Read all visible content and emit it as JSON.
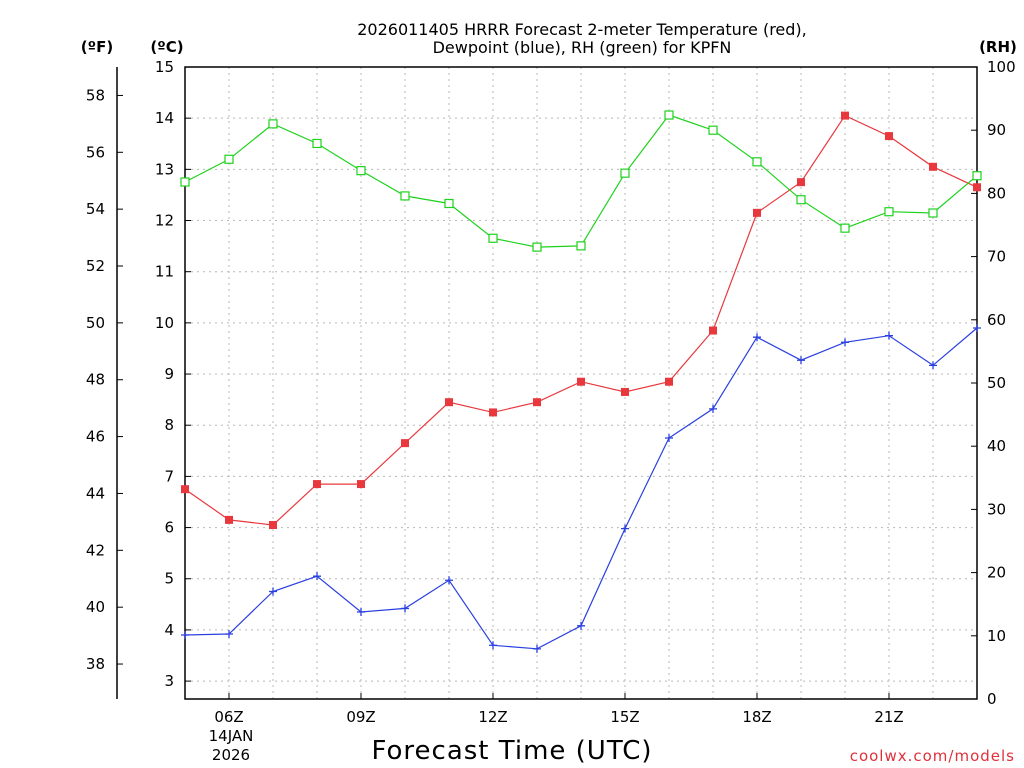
{
  "chart_data": {
    "type": "line",
    "title_line1": "2026011405 HRRR Forecast 2-meter Temperature (red),",
    "title_line2": "Dewpoint (blue), RH (green) for KPFN",
    "xlabel": "Forecast Time (UTC)",
    "credit": "coolwx.com/models",
    "date_label_line1": "14JAN",
    "date_label_line2": "2026",
    "unit_f": "(ºF)",
    "unit_c": "(ºC)",
    "unit_rh": "(RH)",
    "x_hours": [
      5,
      6,
      7,
      8,
      9,
      10,
      11,
      12,
      13,
      14,
      15,
      16,
      17,
      18,
      19,
      20,
      21,
      22,
      23
    ],
    "x_range": [
      5,
      23
    ],
    "x_ticks": [
      {
        "hour": 6,
        "label": "06Z"
      },
      {
        "hour": 9,
        "label": "09Z"
      },
      {
        "hour": 12,
        "label": "12Z"
      },
      {
        "hour": 15,
        "label": "15Z"
      },
      {
        "hour": 18,
        "label": "18Z"
      },
      {
        "hour": 21,
        "label": "21Z"
      }
    ],
    "y_c_range": [
      2.65,
      15
    ],
    "y_c_ticks": [
      "3",
      "4",
      "5",
      "6",
      "7",
      "8",
      "9",
      "10",
      "11",
      "12",
      "13",
      "14",
      "15"
    ],
    "y_f_ticks": [
      "38",
      "40",
      "42",
      "44",
      "46",
      "48",
      "50",
      "52",
      "54",
      "56",
      "58"
    ],
    "y_rh_range": [
      0,
      100
    ],
    "y_rh_ticks": [
      "0",
      "10",
      "20",
      "30",
      "40",
      "50",
      "60",
      "70",
      "80",
      "90",
      "100"
    ],
    "colors": {
      "temperature": "#e8383d",
      "dewpoint": "#2a3fe0",
      "rh": "#1ed21e"
    },
    "series": [
      {
        "name": "Temperature",
        "units": "C",
        "marker": "filled-square",
        "values": [
          6.75,
          6.15,
          6.05,
          6.85,
          6.85,
          7.65,
          8.45,
          8.25,
          8.45,
          8.85,
          8.65,
          8.85,
          9.85,
          12.15,
          12.75,
          14.05,
          13.65,
          13.05,
          12.65
        ]
      },
      {
        "name": "Dewpoint",
        "units": "C",
        "marker": "plus",
        "values": [
          3.9,
          3.92,
          4.75,
          5.05,
          4.35,
          4.42,
          4.97,
          3.7,
          3.63,
          4.08,
          5.98,
          7.75,
          8.32,
          9.72,
          9.27,
          9.62,
          9.75,
          9.17,
          9.9
        ]
      },
      {
        "name": "RH",
        "units": "%",
        "marker": "open-square",
        "values": [
          81.8,
          85.4,
          91.0,
          87.9,
          83.6,
          79.6,
          78.4,
          72.9,
          71.5,
          71.7,
          83.2,
          92.4,
          90.0,
          85.0,
          79.0,
          74.5,
          77.1,
          76.9,
          82.8
        ]
      }
    ]
  }
}
